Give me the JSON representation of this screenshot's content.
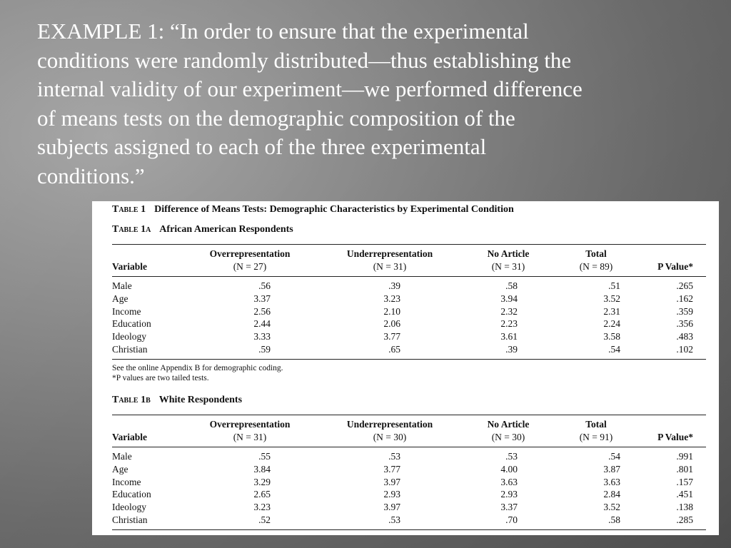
{
  "slide": {
    "lines": [
      "EXAMPLE 1: “In order to ensure that the experimental",
      "conditions were randomly distributed—thus establishing the",
      "internal validity of our experiment—we performed difference",
      "of means tests on the demographic composition of the",
      "subjects assigned to each of the three experimental",
      "conditions.”"
    ]
  },
  "table": {
    "main_label": "Table 1",
    "main_title": "Difference of Means Tests: Demographic Characteristics by Experimental Condition",
    "columns": [
      "Variable",
      "Overrepresentation",
      "Underrepresentation",
      "No Article",
      "Total",
      "P Value*"
    ],
    "tables": [
      {
        "label": "Table 1a",
        "title": "African American Respondents",
        "ns": [
          "(N = 27)",
          "(N = 31)",
          "(N = 31)",
          "(N = 89)"
        ],
        "rows": [
          [
            "Male",
            ".56",
            ".39",
            ".58",
            ".51",
            ".265"
          ],
          [
            "Age",
            "3.37",
            "3.23",
            "3.94",
            "3.52",
            ".162"
          ],
          [
            "Income",
            "2.56",
            "2.10",
            "2.32",
            "2.31",
            ".359"
          ],
          [
            "Education",
            "2.44",
            "2.06",
            "2.23",
            "2.24",
            ".356"
          ],
          [
            "Ideology",
            "3.33",
            "3.77",
            "3.61",
            "3.58",
            ".483"
          ],
          [
            "Christian",
            ".59",
            ".65",
            ".39",
            ".54",
            ".102"
          ]
        ],
        "notes": [
          "See the online Appendix B for demographic coding.",
          "*P values are two tailed tests."
        ]
      },
      {
        "label": "Table 1b",
        "title": "White Respondents",
        "ns": [
          "(N = 31)",
          "(N = 30)",
          "(N = 30)",
          "(N = 91)"
        ],
        "rows": [
          [
            "Male",
            ".55",
            ".53",
            ".53",
            ".54",
            ".991"
          ],
          [
            "Age",
            "3.84",
            "3.77",
            "4.00",
            "3.87",
            ".801"
          ],
          [
            "Income",
            "3.29",
            "3.97",
            "3.63",
            "3.63",
            ".157"
          ],
          [
            "Education",
            "2.65",
            "2.93",
            "2.93",
            "2.84",
            ".451"
          ],
          [
            "Ideology",
            "3.23",
            "3.97",
            "3.37",
            "3.52",
            ".138"
          ],
          [
            "Christian",
            ".52",
            ".53",
            ".70",
            ".58",
            ".285"
          ]
        ],
        "notes": []
      }
    ]
  }
}
